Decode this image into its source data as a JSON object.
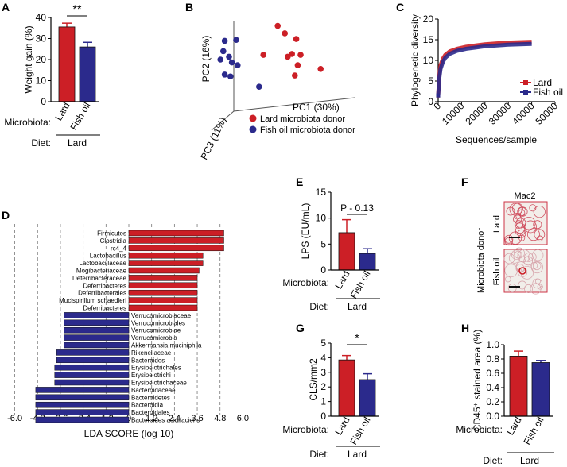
{
  "panels": {
    "A": "A",
    "B": "B",
    "C": "C",
    "D": "D",
    "E": "E",
    "F": "F",
    "G": "G",
    "H": "H"
  },
  "common": {
    "microbiota_label": "Microbiota:",
    "diet_label": "Diet:",
    "diet_value": "Lard",
    "group_lard": "Lard",
    "group_fish": "Fish oil"
  },
  "colors": {
    "lard": "#cc1f26",
    "fish": "#2b2a8c"
  },
  "chart_data": [
    {
      "panel": "A",
      "type": "bar",
      "categories": [
        "Lard",
        "Fish oil"
      ],
      "values": [
        35.5,
        26.0
      ],
      "errors": [
        1.8,
        2.2
      ],
      "ylabel": "Weight gain (%)",
      "ylim": [
        0,
        40
      ],
      "yticks": [
        "0",
        "10",
        "20",
        "30",
        "40"
      ],
      "significance": "**"
    },
    {
      "panel": "B",
      "type": "scatter",
      "axis_labels": {
        "pc1": "PC1 (30%)",
        "pc2": "PC2 (16%)",
        "pc3": "PC3 (11%)"
      },
      "legend": [
        "Lard microbiota donor",
        "Fish oil microbiota donor"
      ],
      "series": [
        {
          "group": "lard",
          "points": [
            [
              0.44,
              0.14
            ],
            [
              0.49,
              0.22
            ],
            [
              0.57,
              0.28
            ],
            [
              0.54,
              0.44
            ],
            [
              0.6,
              0.45
            ],
            [
              0.51,
              0.47
            ],
            [
              0.58,
              0.56
            ],
            [
              0.74,
              0.6
            ],
            [
              0.56,
              0.67
            ],
            [
              0.34,
              0.45
            ]
          ]
        },
        {
          "group": "fish",
          "points": [
            [
              0.07,
              0.3
            ],
            [
              0.15,
              0.29
            ],
            [
              0.06,
              0.41
            ],
            [
              0.04,
              0.5
            ],
            [
              0.1,
              0.47
            ],
            [
              0.12,
              0.53
            ],
            [
              0.16,
              0.56
            ],
            [
              0.07,
              0.66
            ],
            [
              0.11,
              0.68
            ],
            [
              0.31,
              0.79
            ]
          ]
        }
      ]
    },
    {
      "panel": "C",
      "type": "line",
      "ylabel": "Phylogenetic diversity",
      "xlabel": "Sequences/sample",
      "xlim": [
        0,
        50000
      ],
      "ylim": [
        0,
        20
      ],
      "xticks": [
        "0",
        "10000",
        "20000",
        "30000",
        "40000",
        "50000"
      ],
      "yticks": [
        "0",
        "5",
        "10",
        "15",
        "20"
      ],
      "series": [
        {
          "name": "Lard",
          "x": [
            0,
            500,
            1000,
            2000,
            3000,
            5000,
            8000,
            12000,
            16000,
            20000,
            25000,
            30000,
            35000,
            40000
          ],
          "y": [
            1.5,
            6.5,
            8.8,
            10.4,
            11.3,
            12.2,
            12.8,
            13.3,
            13.6,
            13.9,
            14.1,
            14.3,
            14.4,
            14.5
          ]
        },
        {
          "name": "Fish oil",
          "x": [
            0,
            500,
            1000,
            2000,
            3000,
            5000,
            8000,
            12000,
            16000,
            20000,
            25000,
            30000,
            35000,
            40000
          ],
          "y": [
            1.5,
            5.8,
            7.9,
            9.6,
            10.6,
            11.6,
            12.3,
            12.8,
            13.1,
            13.4,
            13.6,
            13.8,
            13.9,
            14.0
          ]
        }
      ]
    },
    {
      "panel": "D",
      "type": "bar",
      "orientation": "horizontal",
      "xlabel": "LDA SCORE (log 10)",
      "xlim": [
        -6,
        6
      ],
      "xticks": [
        "-6.0",
        "-4.8",
        "-3.6",
        "-2.4",
        "-1.2",
        "0",
        "1.2",
        "2.4",
        "3.6",
        "4.8",
        "6.0"
      ],
      "positive": [
        {
          "label": "Firmicutes",
          "value": 5.0
        },
        {
          "label": "Clostridia",
          "value": 5.0
        },
        {
          "label": "rc4_4",
          "value": 5.0
        },
        {
          "label": "Lactobacillus",
          "value": 3.9
        },
        {
          "label": "Lactobacillaceae",
          "value": 3.9
        },
        {
          "label": "Mogibacteriaceae",
          "value": 3.7
        },
        {
          "label": "Deferribacteraceae",
          "value": 3.6
        },
        {
          "label": "Deferribacteres",
          "value": 3.6
        },
        {
          "label": "Deferribacterales",
          "value": 3.6
        },
        {
          "label": "Mucispirillum schaedleri",
          "value": 3.6
        },
        {
          "label": "Deferribacteres",
          "value": 3.6
        }
      ],
      "negative": [
        {
          "label": "Verrucomicrobiaceae",
          "value": -3.4
        },
        {
          "label": "Verrucomicrobiales",
          "value": -3.4
        },
        {
          "label": "Verrucomicrobiae",
          "value": -3.4
        },
        {
          "label": "Verrucomicrobia",
          "value": -3.4
        },
        {
          "label": "Akkermansia muciniphila",
          "value": -3.4
        },
        {
          "label": "Rikenellaceae",
          "value": -3.8
        },
        {
          "label": "Bacteroides",
          "value": -3.8
        },
        {
          "label": "Erysipelotrichales",
          "value": -3.9
        },
        {
          "label": "Erysipelotrichi",
          "value": -3.9
        },
        {
          "label": "Erysipelotrichaceae",
          "value": -3.9
        },
        {
          "label": "Bacteroidaceae",
          "value": -4.9
        },
        {
          "label": "Bacteroidetes",
          "value": -4.9
        },
        {
          "label": "Bacteroidia",
          "value": -4.9
        },
        {
          "label": "Bacteroidales",
          "value": -4.9
        },
        {
          "label": "Bacteroides acidifaciens",
          "value": -4.9
        }
      ]
    },
    {
      "panel": "E",
      "type": "bar",
      "categories": [
        "Lard",
        "Fish oil"
      ],
      "values": [
        7.2,
        3.2
      ],
      "errors": [
        2.5,
        0.9
      ],
      "ylabel": "LPS (EU/mL)",
      "ylim": [
        0,
        15
      ],
      "yticks": [
        "0",
        "5",
        "10",
        "15"
      ],
      "significance": "P - 0.13"
    },
    {
      "panel": "G",
      "type": "bar",
      "categories": [
        "Lard",
        "Fish oil"
      ],
      "values": [
        3.85,
        2.5
      ],
      "errors": [
        0.3,
        0.4
      ],
      "ylabel": "CLS/mm2",
      "ylim": [
        0,
        5
      ],
      "yticks": [
        "0",
        "1",
        "2",
        "3",
        "4",
        "5"
      ],
      "significance": "*"
    },
    {
      "panel": "H",
      "type": "bar",
      "categories": [
        "Lard",
        "Fish oil"
      ],
      "values": [
        0.84,
        0.75
      ],
      "errors": [
        0.07,
        0.03
      ],
      "ylabel": "CD45⁺ stained area (%)",
      "ylim": [
        0,
        1.0
      ],
      "yticks": [
        "0.0",
        "0.2",
        "0.4",
        "0.6",
        "0.8",
        "1.0"
      ]
    }
  ],
  "panel_f": {
    "title": "Mac2",
    "row_label": "Microbiota donor",
    "rows": [
      "Lard",
      "Fish oil"
    ]
  }
}
